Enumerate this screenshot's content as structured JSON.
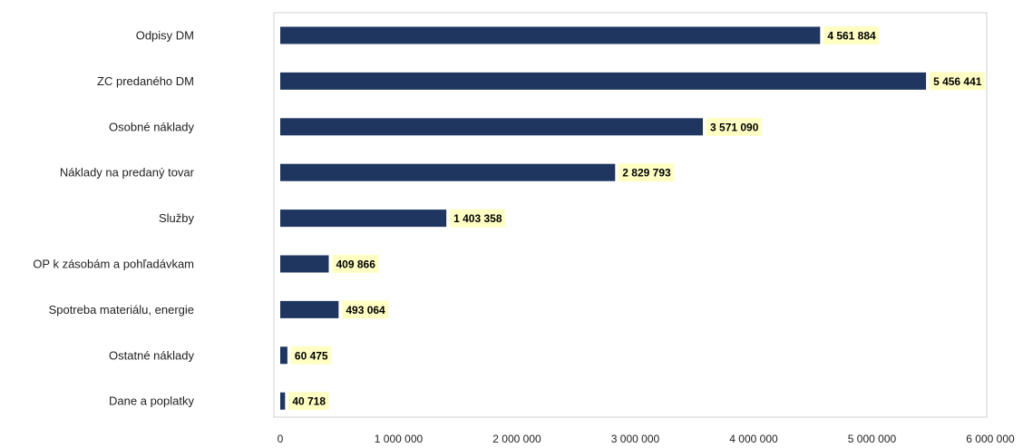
{
  "chart_data": {
    "type": "bar",
    "orientation": "horizontal",
    "title": "",
    "xlabel": "",
    "ylabel": "",
    "categories": [
      "Odpisy DM",
      "ZC predaného DM",
      "Osobné náklady",
      "Náklady na predaný tovar",
      "Služby",
      "OP k zásobám a pohľadávkam",
      "Spotreba materiálu, energie",
      "Ostatné náklady",
      "Dane a poplatky"
    ],
    "values": [
      4561884,
      5456441,
      3571090,
      2829793,
      1403358,
      409866,
      493064,
      60475,
      40718
    ],
    "value_labels": [
      "4 561 884",
      "5 456 441",
      "3 571 090",
      "2 829 793",
      "1 403 358",
      "409 866",
      "493 064",
      "60 475",
      "40 718"
    ],
    "xlim": [
      0,
      6000000
    ],
    "x_ticks": [
      0,
      1000000,
      2000000,
      3000000,
      4000000,
      5000000,
      6000000
    ],
    "x_tick_labels": [
      "0",
      "1 000 000",
      "2 000 000",
      "3 000 000",
      "4 000 000",
      "5 000 000",
      "6 000 000"
    ],
    "grid": false,
    "legend": "none",
    "colors": {
      "bar": "#1f3660",
      "label_bg": "#ffffc4",
      "frame": "#d0d0d0"
    }
  }
}
